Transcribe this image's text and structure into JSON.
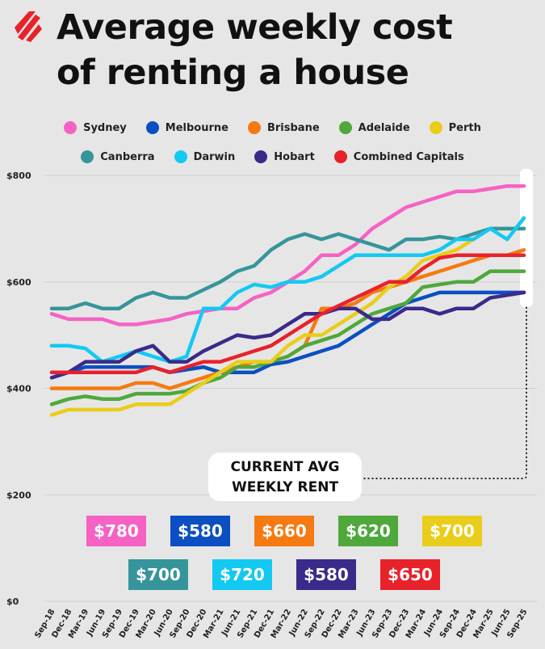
{
  "title_line1": "Average weekly cost",
  "title_line2": "of renting a house",
  "colors": {
    "Sydney": "#f562c4",
    "Melbourne": "#0b4fc2",
    "Brisbane": "#f57a12",
    "Adelaide": "#4fa83c",
    "Perth": "#e9cd1a",
    "Canberra": "#36959a",
    "Darwin": "#13c9f2",
    "Hobart": "#3a2a8a",
    "Combined Capitals": "#e8222b"
  },
  "legend_rows": [
    [
      "Sydney",
      "Melbourne",
      "Brisbane",
      "Adelaide",
      "Perth"
    ],
    [
      "Canberra",
      "Darwin",
      "Hobart",
      "Combined Capitals"
    ]
  ],
  "callout": {
    "line1": "CURRENT AVG",
    "line2": "WEEKLY RENT"
  },
  "badges": [
    {
      "series": "Sydney",
      "text": "$780"
    },
    {
      "series": "Melbourne",
      "text": "$580"
    },
    {
      "series": "Brisbane",
      "text": "$660"
    },
    {
      "series": "Adelaide",
      "text": "$620"
    },
    {
      "series": "Perth",
      "text": "$700"
    },
    {
      "series": "Canberra",
      "text": "$700"
    },
    {
      "series": "Darwin",
      "text": "$720"
    },
    {
      "series": "Hobart",
      "text": "$580"
    },
    {
      "series": "Combined Capitals",
      "text": "$650"
    }
  ],
  "chart_data": {
    "type": "line",
    "title": "Average weekly cost of renting a house",
    "xlabel": "",
    "ylabel": "",
    "ylim": [
      0,
      800
    ],
    "yticks": [
      0,
      200,
      400,
      600,
      800
    ],
    "ytick_labels": [
      "$0",
      "$200",
      "$400",
      "$600",
      "$800"
    ],
    "grid": true,
    "legend_position": "top",
    "x": [
      "Sep-18",
      "Dec-18",
      "Mar-19",
      "Jun-19",
      "Sep-19",
      "Dec-19",
      "Mar-20",
      "Jun-20",
      "Sep-20",
      "Dec-20",
      "Mar-21",
      "Jun-21",
      "Sep-21",
      "Dec-21",
      "Mar-22",
      "Jun-22",
      "Sep-22",
      "Dec-22",
      "Mar-23",
      "Jun-23",
      "Sep-23",
      "Dec-23",
      "Mar-24",
      "Jun-24",
      "Sep-24",
      "Dec-24",
      "Mar-25",
      "Jun-25",
      "Sep-25"
    ],
    "series": [
      {
        "name": "Sydney",
        "values": [
          540,
          530,
          530,
          530,
          520,
          520,
          525,
          530,
          540,
          545,
          550,
          550,
          570,
          580,
          600,
          620,
          650,
          650,
          670,
          700,
          720,
          740,
          750,
          760,
          770,
          770,
          775,
          780,
          780
        ]
      },
      {
        "name": "Melbourne",
        "values": [
          430,
          430,
          440,
          440,
          440,
          440,
          440,
          430,
          435,
          440,
          430,
          430,
          430,
          445,
          450,
          460,
          470,
          480,
          500,
          520,
          540,
          560,
          570,
          580,
          580,
          580,
          580,
          580,
          580
        ]
      },
      {
        "name": "Brisbane",
        "values": [
          400,
          400,
          400,
          400,
          400,
          410,
          410,
          400,
          410,
          420,
          430,
          440,
          450,
          450,
          460,
          480,
          550,
          550,
          560,
          580,
          590,
          600,
          610,
          620,
          630,
          640,
          650,
          650,
          660
        ]
      },
      {
        "name": "Adelaide",
        "values": [
          370,
          380,
          385,
          380,
          380,
          390,
          390,
          390,
          395,
          410,
          420,
          440,
          440,
          450,
          460,
          480,
          490,
          500,
          520,
          540,
          550,
          560,
          590,
          595,
          600,
          600,
          620,
          620,
          620
        ]
      },
      {
        "name": "Perth",
        "values": [
          350,
          360,
          360,
          360,
          360,
          370,
          370,
          370,
          390,
          410,
          430,
          450,
          450,
          450,
          480,
          500,
          500,
          520,
          540,
          560,
          590,
          610,
          640,
          650,
          660,
          680,
          700,
          700,
          700
        ]
      },
      {
        "name": "Canberra",
        "values": [
          550,
          550,
          560,
          550,
          550,
          570,
          580,
          570,
          570,
          585,
          600,
          620,
          630,
          660,
          680,
          690,
          680,
          690,
          680,
          670,
          660,
          680,
          680,
          685,
          680,
          690,
          700,
          700,
          700
        ]
      },
      {
        "name": "Darwin",
        "values": [
          480,
          480,
          475,
          450,
          460,
          470,
          460,
          450,
          460,
          550,
          550,
          580,
          595,
          590,
          600,
          600,
          610,
          630,
          650,
          650,
          650,
          650,
          650,
          660,
          680,
          680,
          700,
          680,
          720
        ]
      },
      {
        "name": "Hobart",
        "values": [
          420,
          430,
          450,
          450,
          450,
          470,
          480,
          450,
          450,
          470,
          485,
          500,
          495,
          500,
          520,
          540,
          540,
          550,
          550,
          530,
          530,
          550,
          550,
          540,
          550,
          550,
          570,
          575,
          580
        ]
      },
      {
        "name": "Combined Capitals",
        "values": [
          430,
          430,
          430,
          430,
          430,
          430,
          440,
          430,
          440,
          450,
          450,
          460,
          470,
          480,
          500,
          520,
          540,
          555,
          570,
          585,
          600,
          600,
          625,
          645,
          650,
          650,
          650,
          650,
          650
        ]
      }
    ]
  }
}
